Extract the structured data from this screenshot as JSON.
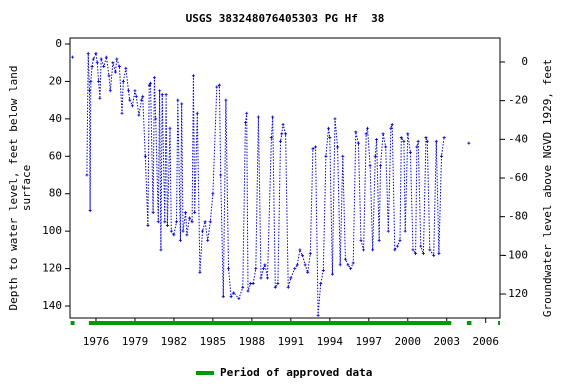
{
  "chart_data": {
    "type": "line",
    "title": "USGS 383248076405303 PG Hf  38",
    "ylabel": [
      "Depth to water level, feet below land",
      "surface"
    ],
    "y2label": "Groundwater level above NGVD 1929, feet",
    "xlim": [
      1974,
      2007.1
    ],
    "xticks": [
      1976,
      1979,
      1982,
      1985,
      1988,
      1991,
      1994,
      1997,
      2000,
      2003,
      2006
    ],
    "ylim": [
      146.4,
      -3.2
    ],
    "yticks": [
      0,
      20,
      40,
      60,
      80,
      100,
      120,
      140
    ],
    "y2lim": [
      -132.4,
      12.4
    ],
    "y2ticks": [
      0,
      -20,
      -40,
      -60,
      -80,
      -100,
      -120
    ],
    "x": [
      1974.2,
      1974.7,
      1975.3,
      1975.4,
      1975.5,
      1975.55,
      1975.6,
      1975.7,
      1975.8,
      1976.0,
      1976.1,
      1976.2,
      1976.3,
      1976.4,
      1976.6,
      1976.8,
      1977.0,
      1977.1,
      1977.3,
      1977.5,
      1977.6,
      1977.8,
      1978.0,
      1978.1,
      1978.3,
      1978.5,
      1978.6,
      1978.8,
      1979.0,
      1979.1,
      1979.3,
      1979.5,
      1979.6,
      1979.8,
      1980.0,
      1980.1,
      1980.2,
      1980.4,
      1980.5,
      1980.6,
      1980.8,
      1980.9,
      1981.0,
      1981.1,
      1981.3,
      1981.4,
      1981.5,
      1981.7,
      1981.8,
      1982.0,
      1982.2,
      1982.3,
      1982.5,
      1982.6,
      1982.7,
      1982.9,
      1983.0,
      1983.2,
      1983.4,
      1983.5,
      1983.6,
      1983.8,
      1984.0,
      1984.2,
      1984.4,
      1984.6,
      1984.8,
      1985.0,
      1985.3,
      1985.5,
      1985.6,
      1985.8,
      1986.0,
      1986.2,
      1986.4,
      1986.6,
      1987.0,
      1987.3,
      1987.5,
      1987.6,
      1987.7,
      1987.9,
      1988.1,
      1988.3,
      1988.5,
      1988.7,
      1988.9,
      1989.0,
      1989.2,
      1989.5,
      1989.6,
      1989.8,
      1990.0,
      1990.2,
      1990.3,
      1990.4,
      1990.6,
      1990.8,
      1991.0,
      1991.3,
      1991.5,
      1991.7,
      1991.9,
      1992.1,
      1992.3,
      1992.5,
      1992.7,
      1992.9,
      1993.1,
      1993.3,
      1993.5,
      1993.7,
      1993.9,
      1994.0,
      1994.2,
      1994.4,
      1994.6,
      1994.8,
      1995.0,
      1995.2,
      1995.4,
      1995.6,
      1995.8,
      1996.0,
      1996.2,
      1996.4,
      1996.6,
      1996.8,
      1996.9,
      1997.1,
      1997.3,
      1997.5,
      1997.6,
      1997.8,
      1997.9,
      1998.1,
      1998.3,
      1998.5,
      1998.7,
      1998.8,
      1999.0,
      1999.2,
      1999.4,
      1999.5,
      1999.7,
      1999.8,
      2000.0,
      2000.2,
      2000.4,
      2000.6,
      2000.7,
      2000.8,
      2001.0,
      2001.2,
      2001.4,
      2001.5,
      2001.7,
      2002.0,
      2002.2,
      2002.4,
      2002.6,
      2002.8,
      2003.5,
      2004.7
    ],
    "series": [
      {
        "color": "#0000cc",
        "values": [
          7,
          null,
          70,
          5,
          25,
          89,
          20,
          12,
          8,
          5,
          10,
          20,
          29,
          8,
          12,
          7,
          17,
          25,
          10,
          15,
          8,
          12,
          37,
          20,
          13,
          25,
          30,
          33,
          25,
          28,
          38,
          30,
          28,
          60,
          97,
          22,
          21,
          90,
          18,
          40,
          95,
          25,
          110,
          27,
          95,
          27,
          97,
          45,
          100,
          102,
          95,
          30,
          105,
          32,
          100,
          90,
          102,
          93,
          95,
          17,
          90,
          37,
          122,
          100,
          95,
          105,
          95,
          80,
          23,
          22,
          70,
          135,
          30,
          120,
          135,
          133,
          136,
          130,
          42,
          37,
          132,
          128,
          128,
          120,
          39,
          125,
          120,
          118,
          125,
          50,
          39,
          130,
          128,
          52,
          48,
          43,
          48,
          130,
          125,
          120,
          118,
          110,
          113,
          118,
          122,
          112,
          56,
          55,
          145,
          128,
          121,
          60,
          45,
          50,
          123,
          40,
          55,
          118,
          60,
          115,
          118,
          120,
          117,
          47,
          53,
          105,
          110,
          48,
          45,
          65,
          110,
          60,
          51,
          105,
          65,
          48,
          55,
          100,
          45,
          43,
          110,
          108,
          105,
          50,
          52,
          100,
          48,
          58,
          110,
          112,
          55,
          52,
          108,
          112,
          50,
          52,
          110,
          113,
          52,
          112,
          60,
          50,
          null,
          53
        ]
      }
    ],
    "legend": {
      "name": "Period of approved data",
      "color": "#009900",
      "periods": [
        [
          1974.05,
          1974.35
        ],
        [
          1975.45,
          2003.35
        ],
        [
          2004.55,
          2004.9
        ],
        [
          2006.95,
          2007.1
        ]
      ]
    }
  }
}
